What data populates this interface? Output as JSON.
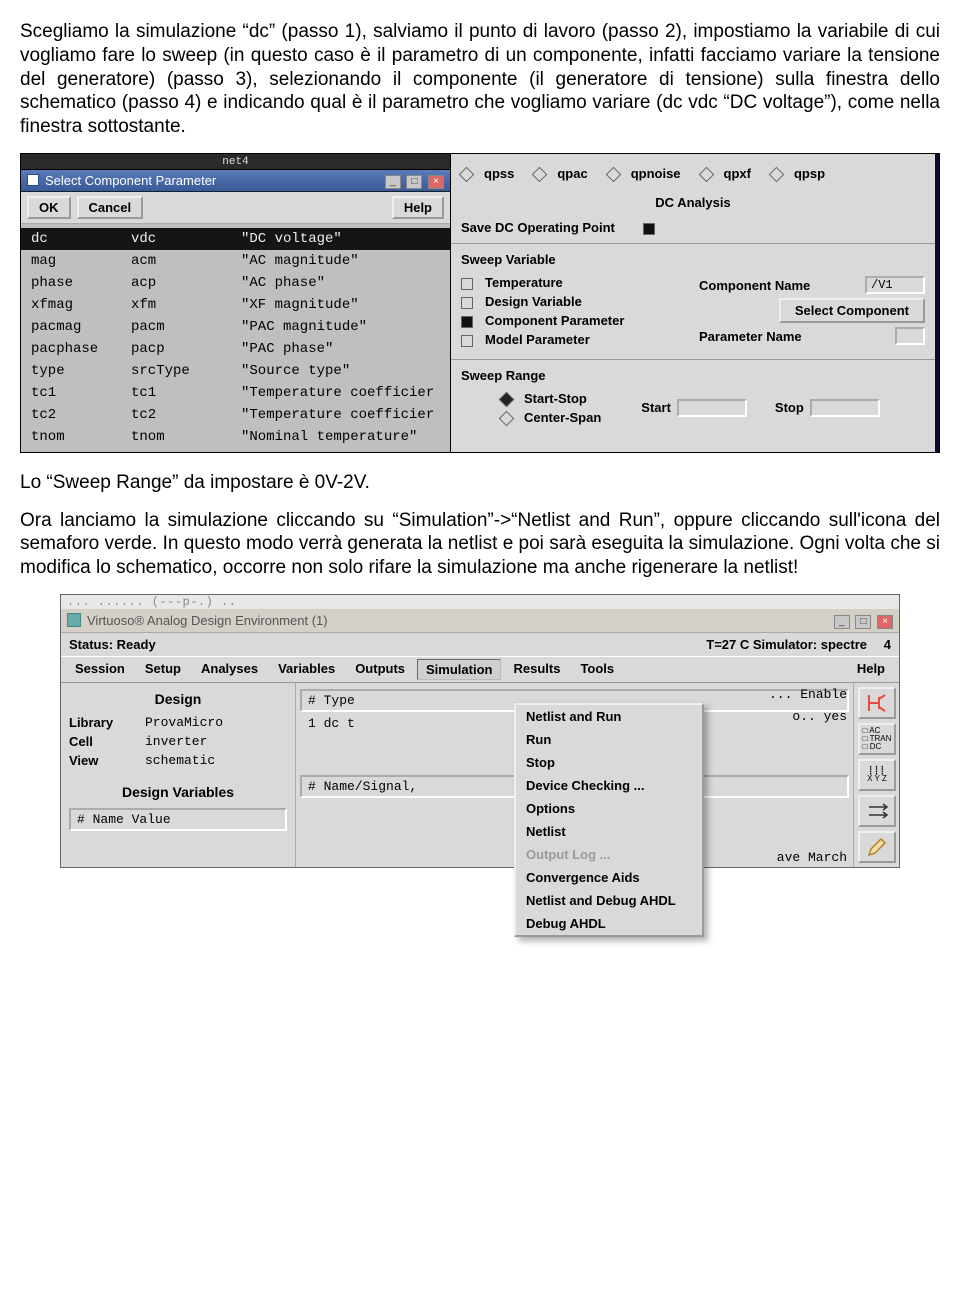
{
  "para1": "Scegliamo la simulazione “dc” (passo 1), salviamo il punto di lavoro (passo 2), impostiamo la variabile di cui vogliamo fare lo sweep (in questo caso è il parametro di un componente, infatti facciamo variare la tensione del generatore) (passo 3), selezionando il componente (il generatore di tensione) sulla finestra dello schematico (passo 4) e indicando qual è il parametro che vogliamo variare (dc vdc “DC voltage”), come nella finestra sottostante.",
  "para2": "Lo “Sweep Range” da impostare è 0V-2V.",
  "para3": "Ora lanciamo la simulazione cliccando su “Simulation”->“Netlist and Run”, oppure cliccando sull'icona del semaforo verde. In questo modo verrà generata la netlist e poi sarà eseguita la simulazione. Ogni volta che si modifica lo schematico, occorre non solo rifare la simulazione ma anche rigenerare la netlist!",
  "shot1": {
    "net4": "net4",
    "dlg_title": "Select Component Parameter",
    "ok": "OK",
    "cancel": "Cancel",
    "help": "Help",
    "selected_index": 0,
    "rows": [
      {
        "c1": "dc",
        "c2": "vdc",
        "c3": "\"DC voltage\""
      },
      {
        "c1": "mag",
        "c2": "acm",
        "c3": "\"AC magnitude\""
      },
      {
        "c1": "phase",
        "c2": "acp",
        "c3": "\"AC phase\""
      },
      {
        "c1": "xfmag",
        "c2": "xfm",
        "c3": "\"XF magnitude\""
      },
      {
        "c1": "pacmag",
        "c2": "pacm",
        "c3": "\"PAC magnitude\""
      },
      {
        "c1": "pacphase",
        "c2": "pacp",
        "c3": "\"PAC phase\""
      },
      {
        "c1": "type",
        "c2": "srcType",
        "c3": "\"Source type\""
      },
      {
        "c1": "tc1",
        "c2": "tc1",
        "c3": "\"Temperature coefficier"
      },
      {
        "c1": "tc2",
        "c2": "tc2",
        "c3": "\"Temperature coefficier"
      },
      {
        "c1": "tnom",
        "c2": "tnom",
        "c3": "\"Nominal temperature\""
      }
    ],
    "opts_top": [
      "qpss",
      "qpac",
      "qpnoise",
      "qpxf",
      "qpsp"
    ],
    "analysis_title": "DC Analysis",
    "save_op": "Save DC Operating Point",
    "sweep_var": "Sweep Variable",
    "temperature": "Temperature",
    "design_var": "Design Variable",
    "comp_param": "Component Parameter",
    "model_param": "Model Parameter",
    "comp_name_label": "Component Name",
    "comp_name_value": "/V1",
    "select_comp": "Select Component",
    "param_name_label": "Parameter Name",
    "param_name_value": "",
    "sweep_range": "Sweep Range",
    "start_stop": "Start-Stop",
    "center_span": "Center-Span",
    "start": "Start",
    "stop": "Stop",
    "start_val": "",
    "stop_val": ""
  },
  "shot2": {
    "top_strip": "... ...... (---p-.) ..",
    "title": "Virtuoso® Analog Design Environment (1)",
    "status_left": "Status: Ready",
    "status_right": "T=27 C  Simulator: spectre",
    "status_num": "4",
    "menu": [
      "Session",
      "Setup",
      "Analyses",
      "Variables",
      "Outputs",
      "Simulation",
      "Results",
      "Tools"
    ],
    "menu_help": "Help",
    "open_menu": "Simulation",
    "dropdown": [
      {
        "t": "Netlist and Run",
        "en": true
      },
      {
        "t": "Run",
        "en": true
      },
      {
        "t": "Stop",
        "en": true
      },
      {
        "t": "Device Checking ...",
        "en": true
      },
      {
        "t": "Options",
        "en": true
      },
      {
        "t": "Netlist",
        "en": true
      },
      {
        "t": "Output Log ...",
        "en": false
      },
      {
        "t": "Convergence Aids",
        "en": true
      },
      {
        "t": "Netlist and Debug AHDL",
        "en": true
      },
      {
        "t": "Debug AHDL",
        "en": true
      }
    ],
    "design_h": "Design",
    "library_k": "Library",
    "library_v": "ProvaMicro",
    "cell_k": "Cell",
    "cell_v": "inverter",
    "view_k": "View",
    "view_v": "schematic",
    "designvars_h": "Design Variables",
    "dv_header": "#   Name     Value",
    "analyses_header": "#   Type",
    "analyses_row": "1   dc        t",
    "enable_frag": "... Enable",
    "o_frag": "o.. yes",
    "outputs_header": "#   Name/Signal,",
    "ave_march": "ave March",
    "tool_labels": {
      "ac": "□ AC",
      "tran": "□ TRAN",
      "dc": "□ DC",
      "xyz": "X Y Z"
    }
  }
}
